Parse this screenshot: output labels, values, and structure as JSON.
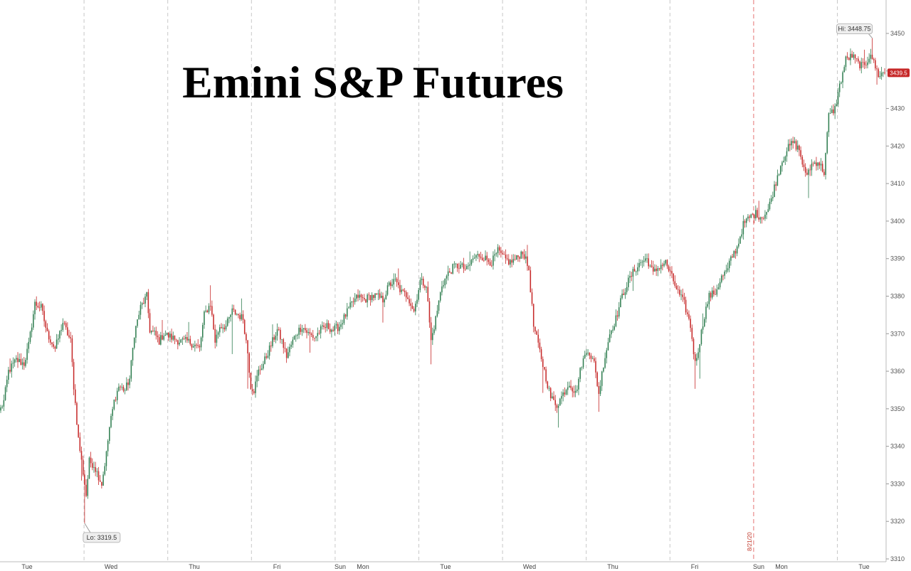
{
  "chart_data": {
    "type": "candlestick",
    "title": "Emini S&P Futures",
    "ylim": [
      3310,
      3455
    ],
    "y_ticks": [
      3310,
      3320,
      3330,
      3340,
      3350,
      3360,
      3370,
      3380,
      3390,
      3400,
      3410,
      3420,
      3430,
      3440,
      3450
    ],
    "x_ticks": [
      "Tue",
      "Wed",
      "Thu",
      "Fri",
      "Sun",
      "Mon",
      "Tue",
      "Wed",
      "Thu",
      "Fri",
      "Sun",
      "Mon",
      "Tue"
    ],
    "session_separators": 10,
    "high": {
      "label": "Hi: 3448.75",
      "value": 3448.75
    },
    "low": {
      "label": "Lo: 3319.5",
      "value": 3319.5
    },
    "last": {
      "label": "3439.5",
      "value": 3439.5
    },
    "date_marker": {
      "label": "8/21/20",
      "session_index": 9
    },
    "colors": {
      "up": "#2e7d4f",
      "down": "#c62828",
      "grid": "#c8c8c8",
      "marker": "#e57373",
      "last_bg": "#c62828"
    },
    "anchors": [
      [
        0,
        3350
      ],
      [
        2,
        3352
      ],
      [
        5,
        3360
      ],
      [
        10,
        3363
      ],
      [
        15,
        3362
      ],
      [
        18,
        3367
      ],
      [
        22,
        3378
      ],
      [
        26,
        3377
      ],
      [
        30,
        3370
      ],
      [
        35,
        3366
      ],
      [
        40,
        3373
      ],
      [
        45,
        3368
      ],
      [
        47,
        3356
      ],
      [
        50,
        3342
      ],
      [
        53,
        3333
      ],
      [
        55,
        3327
      ],
      [
        57,
        3336
      ],
      [
        60,
        3335
      ],
      [
        63,
        3332
      ],
      [
        65,
        3330
      ],
      [
        68,
        3338
      ],
      [
        70,
        3345
      ],
      [
        73,
        3352
      ],
      [
        76,
        3356
      ],
      [
        80,
        3355
      ],
      [
        83,
        3358
      ],
      [
        86,
        3370
      ],
      [
        90,
        3377
      ],
      [
        94,
        3380
      ],
      [
        96,
        3371
      ],
      [
        99,
        3370
      ],
      [
        102,
        3368
      ],
      [
        105,
        3370
      ],
      [
        110,
        3369
      ],
      [
        115,
        3368
      ],
      [
        120,
        3368
      ],
      [
        125,
        3367
      ],
      [
        128,
        3366
      ],
      [
        131,
        3375
      ],
      [
        135,
        3378
      ],
      [
        138,
        3368
      ],
      [
        141,
        3372
      ],
      [
        145,
        3372
      ],
      [
        149,
        3376
      ],
      [
        153,
        3375
      ],
      [
        156,
        3374
      ],
      [
        159,
        3365
      ],
      [
        161,
        3356
      ],
      [
        163,
        3355
      ],
      [
        166,
        3360
      ],
      [
        169,
        3362
      ],
      [
        172,
        3365
      ],
      [
        175,
        3368
      ],
      [
        178,
        3371
      ],
      [
        181,
        3368
      ],
      [
        184,
        3364
      ],
      [
        187,
        3367
      ],
      [
        190,
        3370
      ],
      [
        194,
        3372
      ],
      [
        198,
        3370
      ],
      [
        202,
        3369
      ],
      [
        206,
        3371
      ],
      [
        210,
        3372
      ],
      [
        214,
        3371
      ],
      [
        218,
        3372
      ],
      [
        222,
        3375
      ],
      [
        226,
        3378
      ],
      [
        230,
        3380
      ],
      [
        234,
        3379
      ],
      [
        238,
        3380
      ],
      [
        242,
        3380
      ],
      [
        246,
        3379
      ],
      [
        250,
        3383
      ],
      [
        254,
        3384
      ],
      [
        258,
        3381
      ],
      [
        262,
        3380
      ],
      [
        266,
        3376
      ],
      [
        270,
        3384
      ],
      [
        274,
        3383
      ],
      [
        277,
        3368
      ],
      [
        280,
        3374
      ],
      [
        284,
        3383
      ],
      [
        288,
        3386
      ],
      [
        292,
        3388
      ],
      [
        296,
        3388
      ],
      [
        300,
        3387
      ],
      [
        304,
        3390
      ],
      [
        308,
        3391
      ],
      [
        312,
        3390
      ],
      [
        316,
        3389
      ],
      [
        320,
        3392
      ],
      [
        324,
        3390
      ],
      [
        328,
        3389
      ],
      [
        332,
        3390
      ],
      [
        336,
        3392
      ],
      [
        340,
        3387
      ],
      [
        343,
        3372
      ],
      [
        346,
        3367
      ],
      [
        350,
        3360
      ],
      [
        354,
        3353
      ],
      [
        358,
        3351
      ],
      [
        362,
        3354
      ],
      [
        366,
        3357
      ],
      [
        370,
        3354
      ],
      [
        374,
        3362
      ],
      [
        378,
        3366
      ],
      [
        382,
        3362
      ],
      [
        385,
        3354
      ],
      [
        388,
        3362
      ],
      [
        392,
        3370
      ],
      [
        396,
        3374
      ],
      [
        400,
        3380
      ],
      [
        404,
        3384
      ],
      [
        408,
        3387
      ],
      [
        412,
        3389
      ],
      [
        416,
        3390
      ],
      [
        420,
        3386
      ],
      [
        424,
        3388
      ],
      [
        428,
        3389
      ],
      [
        432,
        3385
      ],
      [
        436,
        3381
      ],
      [
        440,
        3378
      ],
      [
        444,
        3372
      ],
      [
        447,
        3362
      ],
      [
        450,
        3368
      ],
      [
        453,
        3375
      ],
      [
        456,
        3380
      ],
      [
        460,
        3381
      ],
      [
        464,
        3385
      ],
      [
        468,
        3387
      ],
      [
        470,
        3390
      ],
      [
        474,
        3393
      ],
      [
        478,
        3399
      ],
      [
        482,
        3401
      ],
      [
        486,
        3402
      ],
      [
        490,
        3401
      ],
      [
        494,
        3403
      ],
      [
        498,
        3409
      ],
      [
        502,
        3415
      ],
      [
        506,
        3419
      ],
      [
        510,
        3421
      ],
      [
        514,
        3419
      ],
      [
        518,
        3412
      ],
      [
        522,
        3415
      ],
      [
        526,
        3416
      ],
      [
        530,
        3413
      ],
      [
        533,
        3428
      ],
      [
        537,
        3430
      ],
      [
        540,
        3436
      ],
      [
        544,
        3443
      ],
      [
        548,
        3444
      ],
      [
        552,
        3442
      ],
      [
        556,
        3441
      ],
      [
        560,
        3445
      ],
      [
        562,
        3442
      ],
      [
        565,
        3439
      ],
      [
        569,
        3439.5
      ]
    ],
    "spikes": [
      [
        52,
        -5
      ],
      [
        54,
        -6
      ],
      [
        149,
        -9
      ],
      [
        159,
        -8
      ],
      [
        199,
        -5
      ],
      [
        246,
        -4
      ],
      [
        277,
        -6
      ],
      [
        349,
        -6
      ],
      [
        359,
        -4
      ],
      [
        385,
        -4
      ],
      [
        407,
        -3
      ],
      [
        447,
        -6
      ],
      [
        450,
        -7
      ],
      [
        520,
        -6
      ],
      [
        564,
        -3
      ],
      [
        6,
        3
      ],
      [
        104,
        4
      ],
      [
        121,
        3
      ],
      [
        135,
        4
      ],
      [
        155,
        3
      ],
      [
        175,
        2
      ],
      [
        256,
        3
      ],
      [
        302,
        3
      ],
      [
        339,
        3
      ],
      [
        452,
        3
      ],
      [
        488,
        3
      ],
      [
        556,
        3
      ],
      [
        561,
        4
      ]
    ]
  }
}
